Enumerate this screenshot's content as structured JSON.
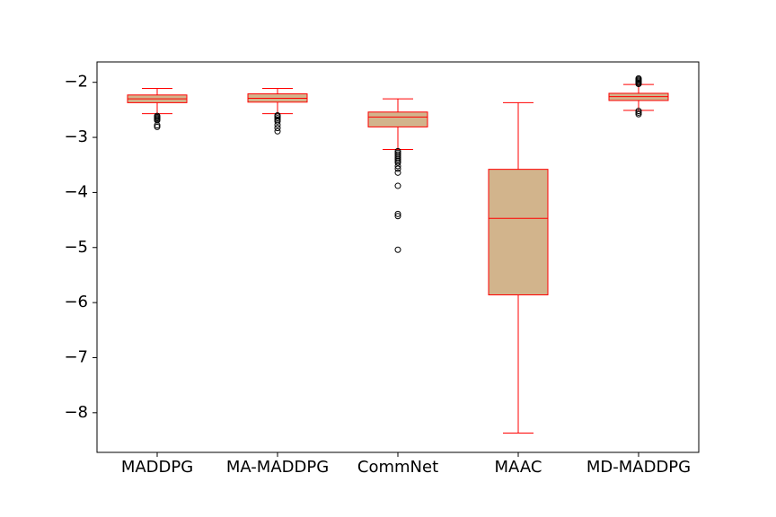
{
  "chart_data": {
    "type": "box",
    "title": "",
    "xlabel": "",
    "ylabel": "",
    "ylim": [
      -8.72,
      -1.63
    ],
    "yticks": [
      -8,
      -7,
      -6,
      -5,
      -4,
      -3,
      -2
    ],
    "ytick_labels": [
      "−8",
      "−7",
      "−6",
      "−5",
      "−4",
      "−3",
      "−2"
    ],
    "grid": false,
    "legend": "none",
    "box_edge_color": "#ff0000",
    "box_fill_color": "#d2b48c",
    "outlier_color": "#000000",
    "categories": [
      "MADDPG",
      "MA-MADDPG",
      "CommNet",
      "MAAC",
      "MD-MADDPG"
    ],
    "boxes": [
      {
        "label": "MADDPG",
        "whisker_low": -2.57,
        "q1": -2.37,
        "median": -2.3,
        "q3": -2.23,
        "whisker_high": -2.11,
        "outliers": [
          -2.61,
          -2.63,
          -2.65,
          -2.67,
          -2.69,
          -2.78,
          -2.81
        ]
      },
      {
        "label": "MA-MADDPG",
        "whisker_low": -2.57,
        "q1": -2.36,
        "median": -2.29,
        "q3": -2.21,
        "whisker_high": -2.11,
        "outliers": [
          -2.6,
          -2.62,
          -2.65,
          -2.68,
          -2.71,
          -2.77,
          -2.83,
          -2.89
        ]
      },
      {
        "label": "CommNet",
        "whisker_low": -3.22,
        "q1": -2.81,
        "median": -2.63,
        "q3": -2.54,
        "whisker_high": -2.3,
        "outliers": [
          -3.25,
          -3.28,
          -3.31,
          -3.34,
          -3.37,
          -3.4,
          -3.43,
          -3.46,
          -3.52,
          -3.57,
          -3.64,
          -3.88,
          -4.39,
          -4.43,
          -5.04
        ]
      },
      {
        "label": "MAAC",
        "whisker_low": -8.37,
        "q1": -5.86,
        "median": -4.47,
        "q3": -3.58,
        "whisker_high": -2.37,
        "outliers": []
      },
      {
        "label": "MD-MADDPG",
        "whisker_low": -2.51,
        "q1": -2.33,
        "median": -2.26,
        "q3": -2.2,
        "whisker_high": -2.04,
        "outliers": [
          -1.93,
          -1.95,
          -1.97,
          -1.99,
          -2.01,
          -2.03,
          -2.52,
          -2.55,
          -2.58
        ]
      }
    ]
  }
}
